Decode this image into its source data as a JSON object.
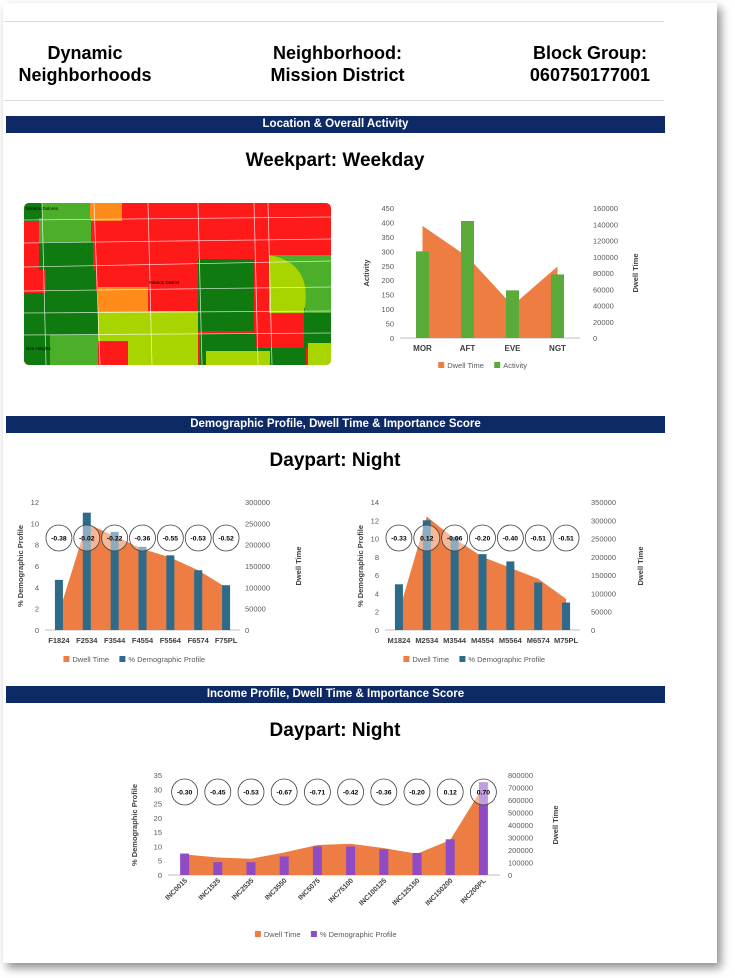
{
  "header": {
    "left_line1": "Dynamic",
    "left_line2": "Neighborhoods",
    "mid_line1": "Neighborhood:",
    "mid_line2": "Mission District",
    "right_line1": "Block Group:",
    "right_line2": "060750177001"
  },
  "sections": {
    "location": "Location & Overall Activity",
    "demographic": "Demographic Profile, Dwell Time & Importance Score",
    "income": "Income Profile, Dwell Time & Importance Score"
  },
  "titles": {
    "weekpart": "Weekpart: Weekday",
    "daypart1": "Daypart: Night",
    "daypart2": "Daypart: Night"
  },
  "map": {
    "labels": [
      "Mission Dolores",
      "Mission District",
      "Noe Heights"
    ],
    "colors": {
      "red": "#ff1a1a",
      "dark_green": "#0f7a0f",
      "green": "#4caf2a",
      "light_green": "#a8d400",
      "orange": "#ff8c1a"
    }
  },
  "colors": {
    "dwell": "#ed7d43",
    "activity": "#5aab3a",
    "demographic": "#2e6b8a",
    "income": "#8e4bc4"
  },
  "chart_data": [
    {
      "id": "activity",
      "type": "bar",
      "categories": [
        "MOR",
        "AFT",
        "EVE",
        "NGT"
      ],
      "series": [
        {
          "name": "Dwell Time",
          "kind": "area",
          "axis": "right",
          "values": [
            138000,
            100000,
            40000,
            88000
          ]
        },
        {
          "name": "Activity",
          "kind": "bar",
          "axis": "left",
          "values": [
            300,
            405,
            165,
            220
          ]
        }
      ],
      "ylabel": "Activity",
      "y2label": "Dwell Time",
      "ylim": [
        0,
        450
      ],
      "yticks": [
        0,
        50,
        100,
        150,
        200,
        250,
        300,
        350,
        400,
        450
      ],
      "y2lim": [
        0,
        160000
      ],
      "y2ticks": [
        0,
        20000,
        40000,
        60000,
        80000,
        100000,
        120000,
        140000,
        160000
      ],
      "legend": "bottom"
    },
    {
      "id": "female",
      "type": "bar",
      "categories": [
        "F1824",
        "F2534",
        "F3544",
        "F4554",
        "F5564",
        "F6574",
        "F75PL"
      ],
      "series": [
        {
          "name": "Dwell Time",
          "kind": "area",
          "axis": "right",
          "values": [
            40000,
            250000,
            220000,
            190000,
            170000,
            140000,
            100000
          ]
        },
        {
          "name": "% Demographic Profile",
          "kind": "bar",
          "axis": "left",
          "values": [
            4.7,
            11,
            9.2,
            7.8,
            7.0,
            5.6,
            4.2
          ]
        }
      ],
      "scores": [
        "-0.38",
        "-0.02",
        "-0.22",
        "-0.36",
        "-0.55",
        "-0.53",
        "-0.52"
      ],
      "ylabel": "% Demographic Profile",
      "y2label": "Dwell Time",
      "ylim": [
        0,
        12
      ],
      "yticks": [
        0,
        2,
        4,
        6,
        8,
        10,
        12
      ],
      "y2lim": [
        0,
        300000
      ],
      "y2ticks": [
        0,
        50000,
        100000,
        150000,
        200000,
        250000,
        300000
      ],
      "legend": "bottom"
    },
    {
      "id": "male",
      "type": "bar",
      "categories": [
        "M1824",
        "M2534",
        "M3544",
        "M4554",
        "M5564",
        "M6574",
        "M75PL"
      ],
      "series": [
        {
          "name": "Dwell Time",
          "kind": "area",
          "axis": "right",
          "values": [
            50000,
            310000,
            250000,
            200000,
            170000,
            140000,
            85000
          ]
        },
        {
          "name": "% Demographic Profile",
          "kind": "bar",
          "axis": "left",
          "values": [
            5,
            12,
            10.2,
            8.3,
            7.5,
            5.2,
            3
          ]
        }
      ],
      "scores": [
        "-0.33",
        "0.12",
        "-0.06",
        "-0.20",
        "-0.40",
        "-0.51",
        "-0.51"
      ],
      "ylabel": "% Demographic Profile",
      "y2label": "Dwell Time",
      "ylim": [
        0,
        14
      ],
      "yticks": [
        0,
        2,
        4,
        6,
        8,
        10,
        12,
        14
      ],
      "y2lim": [
        0,
        350000
      ],
      "y2ticks": [
        0,
        50000,
        100000,
        150000,
        200000,
        250000,
        300000,
        350000
      ],
      "legend": "bottom"
    },
    {
      "id": "income",
      "type": "bar",
      "categories": [
        "INC0015",
        "INC1525",
        "INC2535",
        "INC3550",
        "INC5075",
        "INC75100",
        "INC100125",
        "INC125150",
        "INC150200",
        "INC200PL"
      ],
      "series": [
        {
          "name": "Dwell Time",
          "kind": "area",
          "axis": "right",
          "values": [
            165000,
            140000,
            130000,
            180000,
            240000,
            250000,
            215000,
            170000,
            280000,
            710000
          ]
        },
        {
          "name": "% Demographic Profile",
          "kind": "bar",
          "axis": "left",
          "values": [
            7.5,
            4.5,
            4.5,
            6.5,
            10,
            10,
            9,
            7.7,
            12.5,
            32.5
          ]
        }
      ],
      "scores": [
        "-0.30",
        "-0.45",
        "-0.53",
        "-0.67",
        "-0.71",
        "-0.42",
        "-0.36",
        "-0.20",
        "0.12",
        "0.70"
      ],
      "ylabel": "% Demographic Profile",
      "y2label": "Dwell Time",
      "ylim": [
        0,
        35
      ],
      "yticks": [
        0,
        5,
        10,
        15,
        20,
        25,
        30,
        35
      ],
      "y2lim": [
        0,
        800000
      ],
      "y2ticks": [
        0,
        100000,
        200000,
        300000,
        400000,
        500000,
        600000,
        700000,
        800000
      ],
      "legend": "bottom"
    }
  ]
}
